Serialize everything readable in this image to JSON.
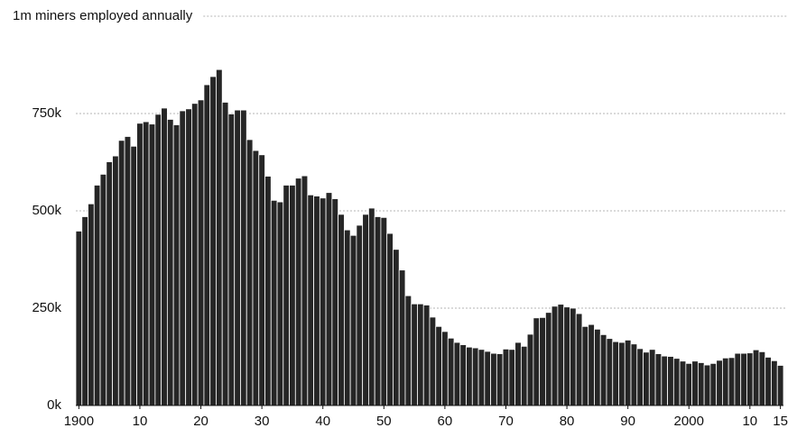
{
  "chart_data": {
    "type": "bar",
    "color": "#262626",
    "grid": true,
    "x": [
      1900,
      1901,
      1902,
      1903,
      1904,
      1905,
      1906,
      1907,
      1908,
      1909,
      1910,
      1911,
      1912,
      1913,
      1914,
      1915,
      1916,
      1917,
      1918,
      1919,
      1920,
      1921,
      1922,
      1923,
      1924,
      1925,
      1926,
      1927,
      1928,
      1929,
      1930,
      1931,
      1932,
      1933,
      1934,
      1935,
      1936,
      1937,
      1938,
      1939,
      1940,
      1941,
      1942,
      1943,
      1944,
      1945,
      1946,
      1947,
      1948,
      1949,
      1950,
      1951,
      1952,
      1953,
      1954,
      1955,
      1956,
      1957,
      1958,
      1959,
      1960,
      1961,
      1962,
      1963,
      1964,
      1965,
      1966,
      1967,
      1968,
      1969,
      1970,
      1971,
      1972,
      1973,
      1974,
      1975,
      1976,
      1977,
      1978,
      1979,
      1980,
      1981,
      1982,
      1983,
      1984,
      1985,
      1986,
      1987,
      1988,
      1989,
      1990,
      1991,
      1992,
      1993,
      1994,
      1995,
      1996,
      1997,
      1998,
      1999,
      2000,
      2001,
      2002,
      2003,
      2004,
      2005,
      2006,
      2007,
      2008,
      2009,
      2010,
      2011,
      2012,
      2013,
      2014,
      2015
    ],
    "values": [
      448000,
      485000,
      518000,
      566000,
      594000,
      626000,
      641000,
      681000,
      691000,
      666000,
      725000,
      729000,
      723000,
      748000,
      764000,
      735000,
      721000,
      757000,
      762000,
      776000,
      785000,
      824000,
      845000,
      863000,
      779000,
      749000,
      759000,
      759000,
      683000,
      655000,
      644000,
      589000,
      527000,
      523000,
      566000,
      566000,
      584000,
      590000,
      541000,
      538000,
      533000,
      547000,
      531000,
      491000,
      451000,
      437000,
      463000,
      491000,
      507000,
      485000,
      483000,
      442000,
      401000,
      348000,
      282000,
      261000,
      261000,
      258000,
      227000,
      203000,
      190000,
      173000,
      162000,
      156000,
      150000,
      148000,
      144000,
      139000,
      134000,
      133000,
      145000,
      144000,
      162000,
      152000,
      183000,
      225000,
      226000,
      239000,
      255000,
      260000,
      253000,
      250000,
      236000,
      203000,
      208000,
      196000,
      182000,
      172000,
      164000,
      162000,
      168000,
      158000,
      146000,
      137000,
      144000,
      133000,
      127000,
      126000,
      121000,
      114000,
      108000,
      114000,
      110000,
      104000,
      108000,
      116000,
      122000,
      123000,
      134000,
      134000,
      135000,
      143000,
      138000,
      124000,
      115000,
      103000
    ],
    "xlim": [
      1899.5,
      2015.5
    ],
    "xticks": [
      1900,
      {
        "value": 1910,
        "label": "10"
      },
      {
        "value": 1920,
        "label": "20"
      },
      {
        "value": 1930,
        "label": "30"
      },
      {
        "value": 1940,
        "label": "40"
      },
      {
        "value": 1950,
        "label": "50"
      },
      {
        "value": 1960,
        "label": "60"
      },
      {
        "value": 1970,
        "label": "70"
      },
      {
        "value": 1980,
        "label": "80"
      },
      {
        "value": 1990,
        "label": "90"
      },
      2000,
      {
        "value": 2010,
        "label": "10"
      },
      {
        "value": 2015,
        "label": "15"
      }
    ],
    "ylim": [
      0,
      1000000
    ],
    "yticks": [
      {
        "value": 0,
        "label": "0k"
      },
      {
        "value": 250000,
        "label": "250k"
      },
      {
        "value": 500000,
        "label": "500k"
      },
      {
        "value": 750000,
        "label": "750k"
      },
      {
        "value": 1000000,
        "label": "1m miners employed annually"
      }
    ]
  }
}
